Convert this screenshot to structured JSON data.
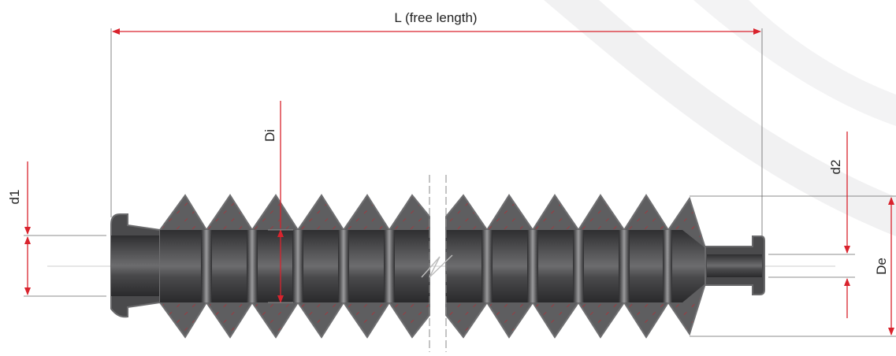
{
  "labels": {
    "length": "L (free length)",
    "inner_diameter": "Di",
    "small_end_diameter_1": "d1",
    "small_end_diameter_2": "d2",
    "outer_diameter": "De"
  },
  "colors": {
    "dimension_red": "#d9232d",
    "rubber_dark": "#3c3c3e",
    "rubber_mid": "#58585a",
    "rubber_light": "#8e8e90",
    "rubber_edge": "#6a6a6c",
    "extension_line": "#555555",
    "watermark": "#eeeeef"
  }
}
